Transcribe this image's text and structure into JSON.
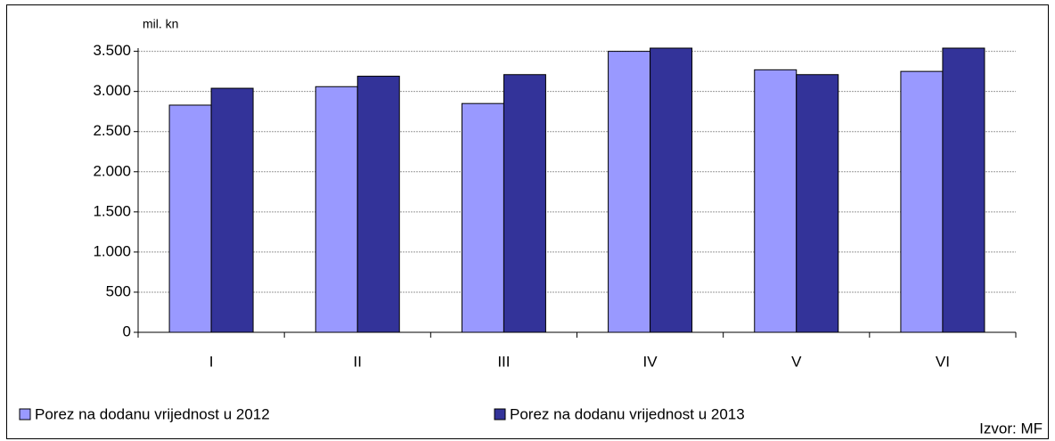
{
  "chart_data": {
    "type": "bar",
    "y_axis_label": "mil. kn",
    "categories": [
      "I",
      "II",
      "III",
      "IV",
      "V",
      "VI"
    ],
    "series": [
      {
        "name": "Porez na dodanu vrijednost u 2012",
        "color": "#9999ff",
        "values": [
          2830,
          3060,
          2850,
          3500,
          3270,
          3250
        ]
      },
      {
        "name": "Porez na dodanu vrijednost u 2013",
        "color": "#333399",
        "values": [
          3040,
          3190,
          3210,
          3540,
          3210,
          3540
        ]
      }
    ],
    "ylim": [
      0,
      3540
    ],
    "yticks": [
      0,
      500,
      {
        "value": 1000,
        "label": "1.000"
      },
      {
        "value": 1500,
        "label": "1.500"
      },
      {
        "value": 2000,
        "label": "2.000"
      },
      {
        "value": 2500,
        "label": "2.500"
      },
      {
        "value": 3000,
        "label": "3.000"
      },
      {
        "value": 3500,
        "label": "3.500"
      }
    ],
    "grid": true,
    "legend": "bottom",
    "annotation": "Izvor: MF"
  }
}
